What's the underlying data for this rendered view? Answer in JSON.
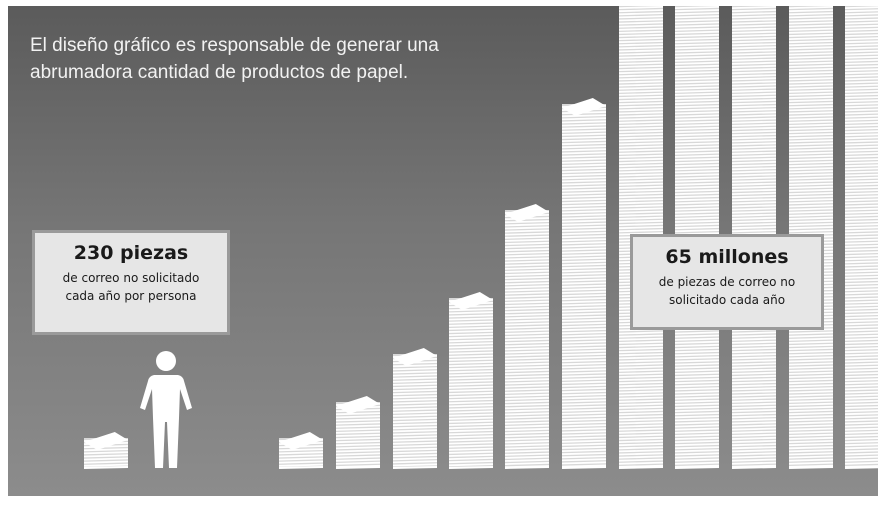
{
  "headline": {
    "line1": "El diseño gráfico es responsable de generar una",
    "line2": "abrumadora cantidad de productos de papel."
  },
  "callout_left": {
    "value": "230 piezas",
    "caption_line1": "de correo no solicitado",
    "caption_line2": "cada año por persona"
  },
  "callout_right": {
    "value": "65 millones",
    "caption_line1": "de piezas de correo no",
    "caption_line2": "solicitado cada año"
  },
  "icons": {
    "person": "person-silhouette-icon",
    "paper_stack": "paper-stack-icon"
  },
  "colors": {
    "background_top": "#5b5b5b",
    "background_bottom": "#8c8c8c",
    "paper": "#ffffff",
    "callout_fill": "#e6e6e6",
    "callout_border": "#9a9a9a"
  }
}
